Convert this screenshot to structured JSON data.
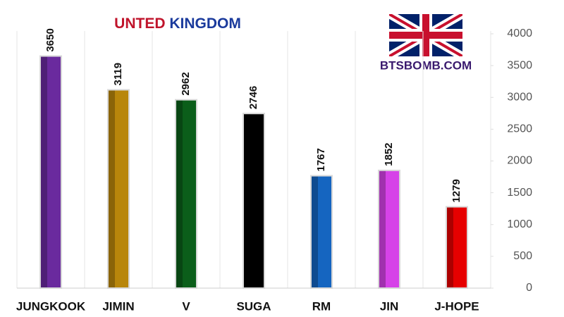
{
  "chart_data": {
    "type": "bar",
    "title": "UNTED KINGDOM",
    "title_colors": [
      "#c0142b",
      "#1a3a9c"
    ],
    "annotation": "BTSBOMB.COM",
    "categories": [
      "JUNGKOOK",
      "JIMIN",
      "V",
      "SUGA",
      "RM",
      "JIN",
      "J-HOPE"
    ],
    "values": [
      3650,
      3119,
      2962,
      2746,
      1767,
      1852,
      1279
    ],
    "colors": [
      "#6a2a9e",
      "#b8860b",
      "#0b5e1a",
      "#000000",
      "#1565c0",
      "#d642e8",
      "#e60000"
    ],
    "ylim": [
      0,
      4000
    ],
    "yticks": [
      0,
      500,
      1000,
      1500,
      2000,
      2500,
      3000,
      3500,
      4000
    ],
    "grid": true
  }
}
